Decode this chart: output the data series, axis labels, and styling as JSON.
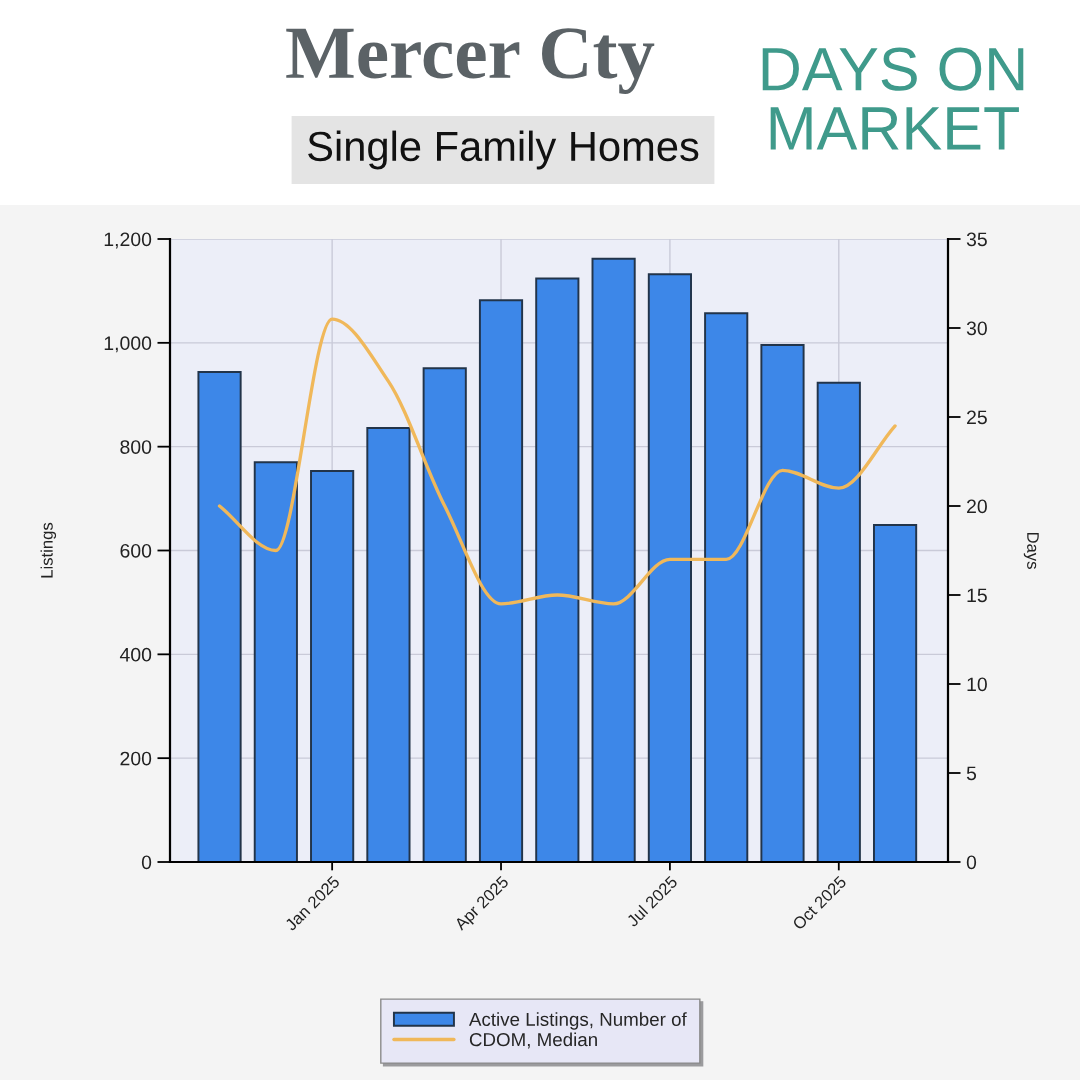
{
  "chart_data": {
    "type": "bar",
    "title": "Mercer Cty",
    "subtitle": "Single Family Homes",
    "annotations": [
      "DAYS ON MARKET"
    ],
    "ylabel": "Listings",
    "y2label": "Days",
    "categories": [
      null,
      null,
      "Jan 2025",
      null,
      null,
      "Apr 2025",
      null,
      null,
      "Jul 2025",
      null,
      null,
      "Oct 2025",
      null
    ],
    "series": [
      {
        "name": "Active Listings, Number of",
        "color": "#3d87e8",
        "values": [
          944,
          770,
          753,
          836,
          951,
          1082,
          1124,
          1162,
          1132,
          1057,
          996,
          923,
          649
        ]
      },
      {
        "name": "CDOM, Median",
        "type": "line",
        "axis": "y2",
        "color": "#f0b85a",
        "values": [
          20,
          17.5,
          30.5,
          27,
          20,
          14.5,
          15,
          14.5,
          17,
          17,
          22,
          21,
          24.5
        ]
      }
    ],
    "ylim": [
      0,
      1200
    ],
    "yticks": [
      0,
      200,
      400,
      600,
      800,
      {
        "value": 1000,
        "label": "1,000"
      },
      {
        "value": 1200,
        "label": "1,200"
      }
    ],
    "y2lim": [
      0,
      35
    ],
    "y2ticks": [
      0,
      5,
      10,
      15,
      20,
      25,
      30,
      35
    ],
    "grid": true,
    "legend": "bottom",
    "line_style": "solid"
  }
}
